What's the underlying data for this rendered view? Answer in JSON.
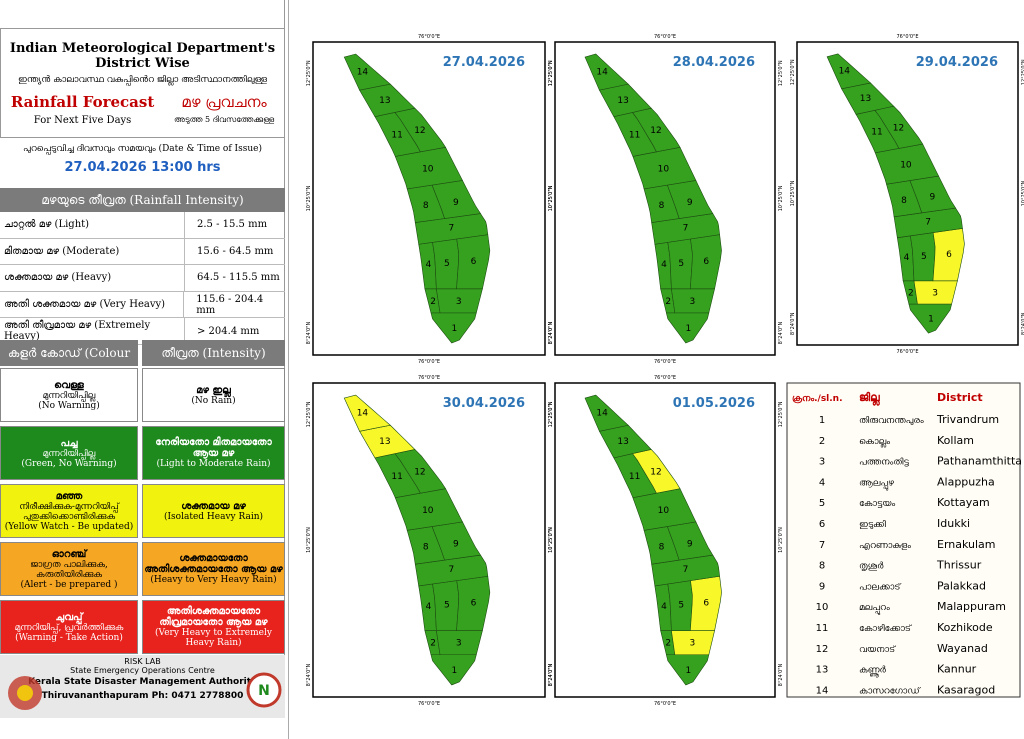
{
  "header": {
    "title": "Indian Meteorological Department's District Wise",
    "title_ml": "ഇന്ത്യൻ കാലാവസ്ഥ വകുപ്പിൻെറ ജില്ലാ അടിസ്ഥാനത്തിലുള്ള",
    "subtitle": "Rainfall Forecast",
    "subtitle_ml": "മഴ പ്രവചനം",
    "period": "For Next Five Days",
    "period_ml": "അടുത്ത 5 ദിവസത്തേക്കുള്ള"
  },
  "issue": {
    "label": "പുറപ്പെടുവിച്ച ദിവസവും സമയവും (Date & Time of Issue)",
    "value": "27.04.2026 13:00 hrs"
  },
  "intensity": {
    "heading": "മഴയുടെ തീവ്രത (Rainfall Intensity)",
    "rows": [
      [
        "ചാറ്റൽ മഴ (Light)",
        "2.5 - 15.5 mm"
      ],
      [
        "മിതമായ മഴ (Moderate)",
        "15.6 - 64.5 mm"
      ],
      [
        "ശക്തമായ മഴ (Heavy)",
        "64.5 - 115.5 mm"
      ],
      [
        "അതി ശക്തമായ മഴ (Very Heavy)",
        "115.6 - 204.4 mm"
      ],
      [
        "അതി തീവ്രമായ മഴ (Extremely Heavy)",
        "> 204.4 mm"
      ]
    ]
  },
  "colour_code": {
    "headers": [
      "കളർ കോഡ് (Colour Code)",
      "തീവ്രത (Intensity)"
    ],
    "rows": [
      {
        "color": "#ffffff",
        "text": "#000000",
        "left": [
          "വെള്ള",
          "മുന്നറിയിപ്പില്ല",
          "(No Warning)"
        ],
        "right": [
          "മഴ ഇല്ല",
          "(No Rain)"
        ]
      },
      {
        "color": "#1e8a1e",
        "text": "#ffffff",
        "left": [
          "പച്ച",
          "മുന്നറിയിപ്പില്ല",
          "(Green, No Warning)"
        ],
        "right": [
          "നേരിയതോ മിതമായതോ ആയ മഴ",
          "(Light to Moderate Rain)"
        ]
      },
      {
        "color": "#f2f20f",
        "text": "#000000",
        "left": [
          "മഞ്ഞ",
          "നിരീക്ഷിക്കുക-മുന്നറിയിപ്പ് പുതുക്കിക്കൊണ്ടിരിക്കുക",
          "(Yellow Watch - Be updated)"
        ],
        "right": [
          "ശക്തമായ മഴ",
          "(Isolated Heavy Rain)"
        ]
      },
      {
        "color": "#f5a623",
        "text": "#000000",
        "left": [
          "ഓറഞ്ച്",
          "ജാഗ്രത പാലിക്കുക, കരുതിയിരിക്കുക",
          "(Alert - be prepared )"
        ],
        "right": [
          "ശക്തമായതോ അതിശക്തമായതോ ആയ മഴ",
          "(Heavy to Very Heavy Rain)"
        ]
      },
      {
        "color": "#e8231e",
        "text": "#ffffff",
        "left": [
          "ചുവപ്പ്",
          "മുന്നറിയിപ്പ്, പ്രവർത്തിക്കുക",
          "(Warning - Take Action)"
        ],
        "right": [
          "അതിശക്തമായതോ തീവ്രമായതോ ആയ മഴ",
          "(Very Heavy to Extremely Heavy Rain)"
        ]
      }
    ]
  },
  "footer": {
    "lab": "RISK LAB",
    "centre": "State Emergency Operations Centre",
    "authority": "Kerala State Disaster Management Authority",
    "contact": "Thiruvananthapuram Ph: 0471 2778800"
  },
  "map_labels": {
    "lon": "76°0'0\"E",
    "lat": [
      "12°25'0\"N",
      "10°25'0\"N",
      "8°24'0\"N"
    ]
  },
  "map_colors": {
    "default": "#36a11f",
    "yellow": "#f7f72a"
  },
  "maps": [
    {
      "date": "27.04.2026",
      "yellow": []
    },
    {
      "date": "28.04.2026",
      "yellow": []
    },
    {
      "date": "29.04.2026",
      "yellow": [
        6,
        3
      ]
    },
    {
      "date": "30.04.2026",
      "yellow": [
        14,
        13
      ]
    },
    {
      "date": "01.05.2026",
      "yellow": [
        12,
        6,
        3
      ]
    }
  ],
  "districts": {
    "headers": [
      "ക്രനം./sl.n.",
      "ജില്ല",
      "District"
    ],
    "rows": [
      [
        "1",
        "തിരുവനന്തപുരം",
        "Trivandrum"
      ],
      [
        "2",
        "കൊല്ലം",
        "Kollam"
      ],
      [
        "3",
        "പത്തനംതിട്ട",
        "Pathanamthitta"
      ],
      [
        "4",
        "ആലപ്പുഴ",
        "Alappuzha"
      ],
      [
        "5",
        "കോട്ടയം",
        "Kottayam"
      ],
      [
        "6",
        "ഇടുക്കി",
        "Idukki"
      ],
      [
        "7",
        "എറണാകുളം",
        "Ernakulam"
      ],
      [
        "8",
        "തൃശൂർ",
        "Thrissur"
      ],
      [
        "9",
        "പാലക്കാട്",
        "Palakkad"
      ],
      [
        "10",
        "മലപ്പുറം",
        "Malappuram"
      ],
      [
        "11",
        "കോഴിക്കോട്",
        "Kozhikode"
      ],
      [
        "12",
        "വയനാട്",
        "Wayanad"
      ],
      [
        "13",
        "കണ്ണൂർ",
        "Kannur"
      ],
      [
        "14",
        "കാസറഗോഡ്",
        "Kasaragod"
      ]
    ]
  }
}
